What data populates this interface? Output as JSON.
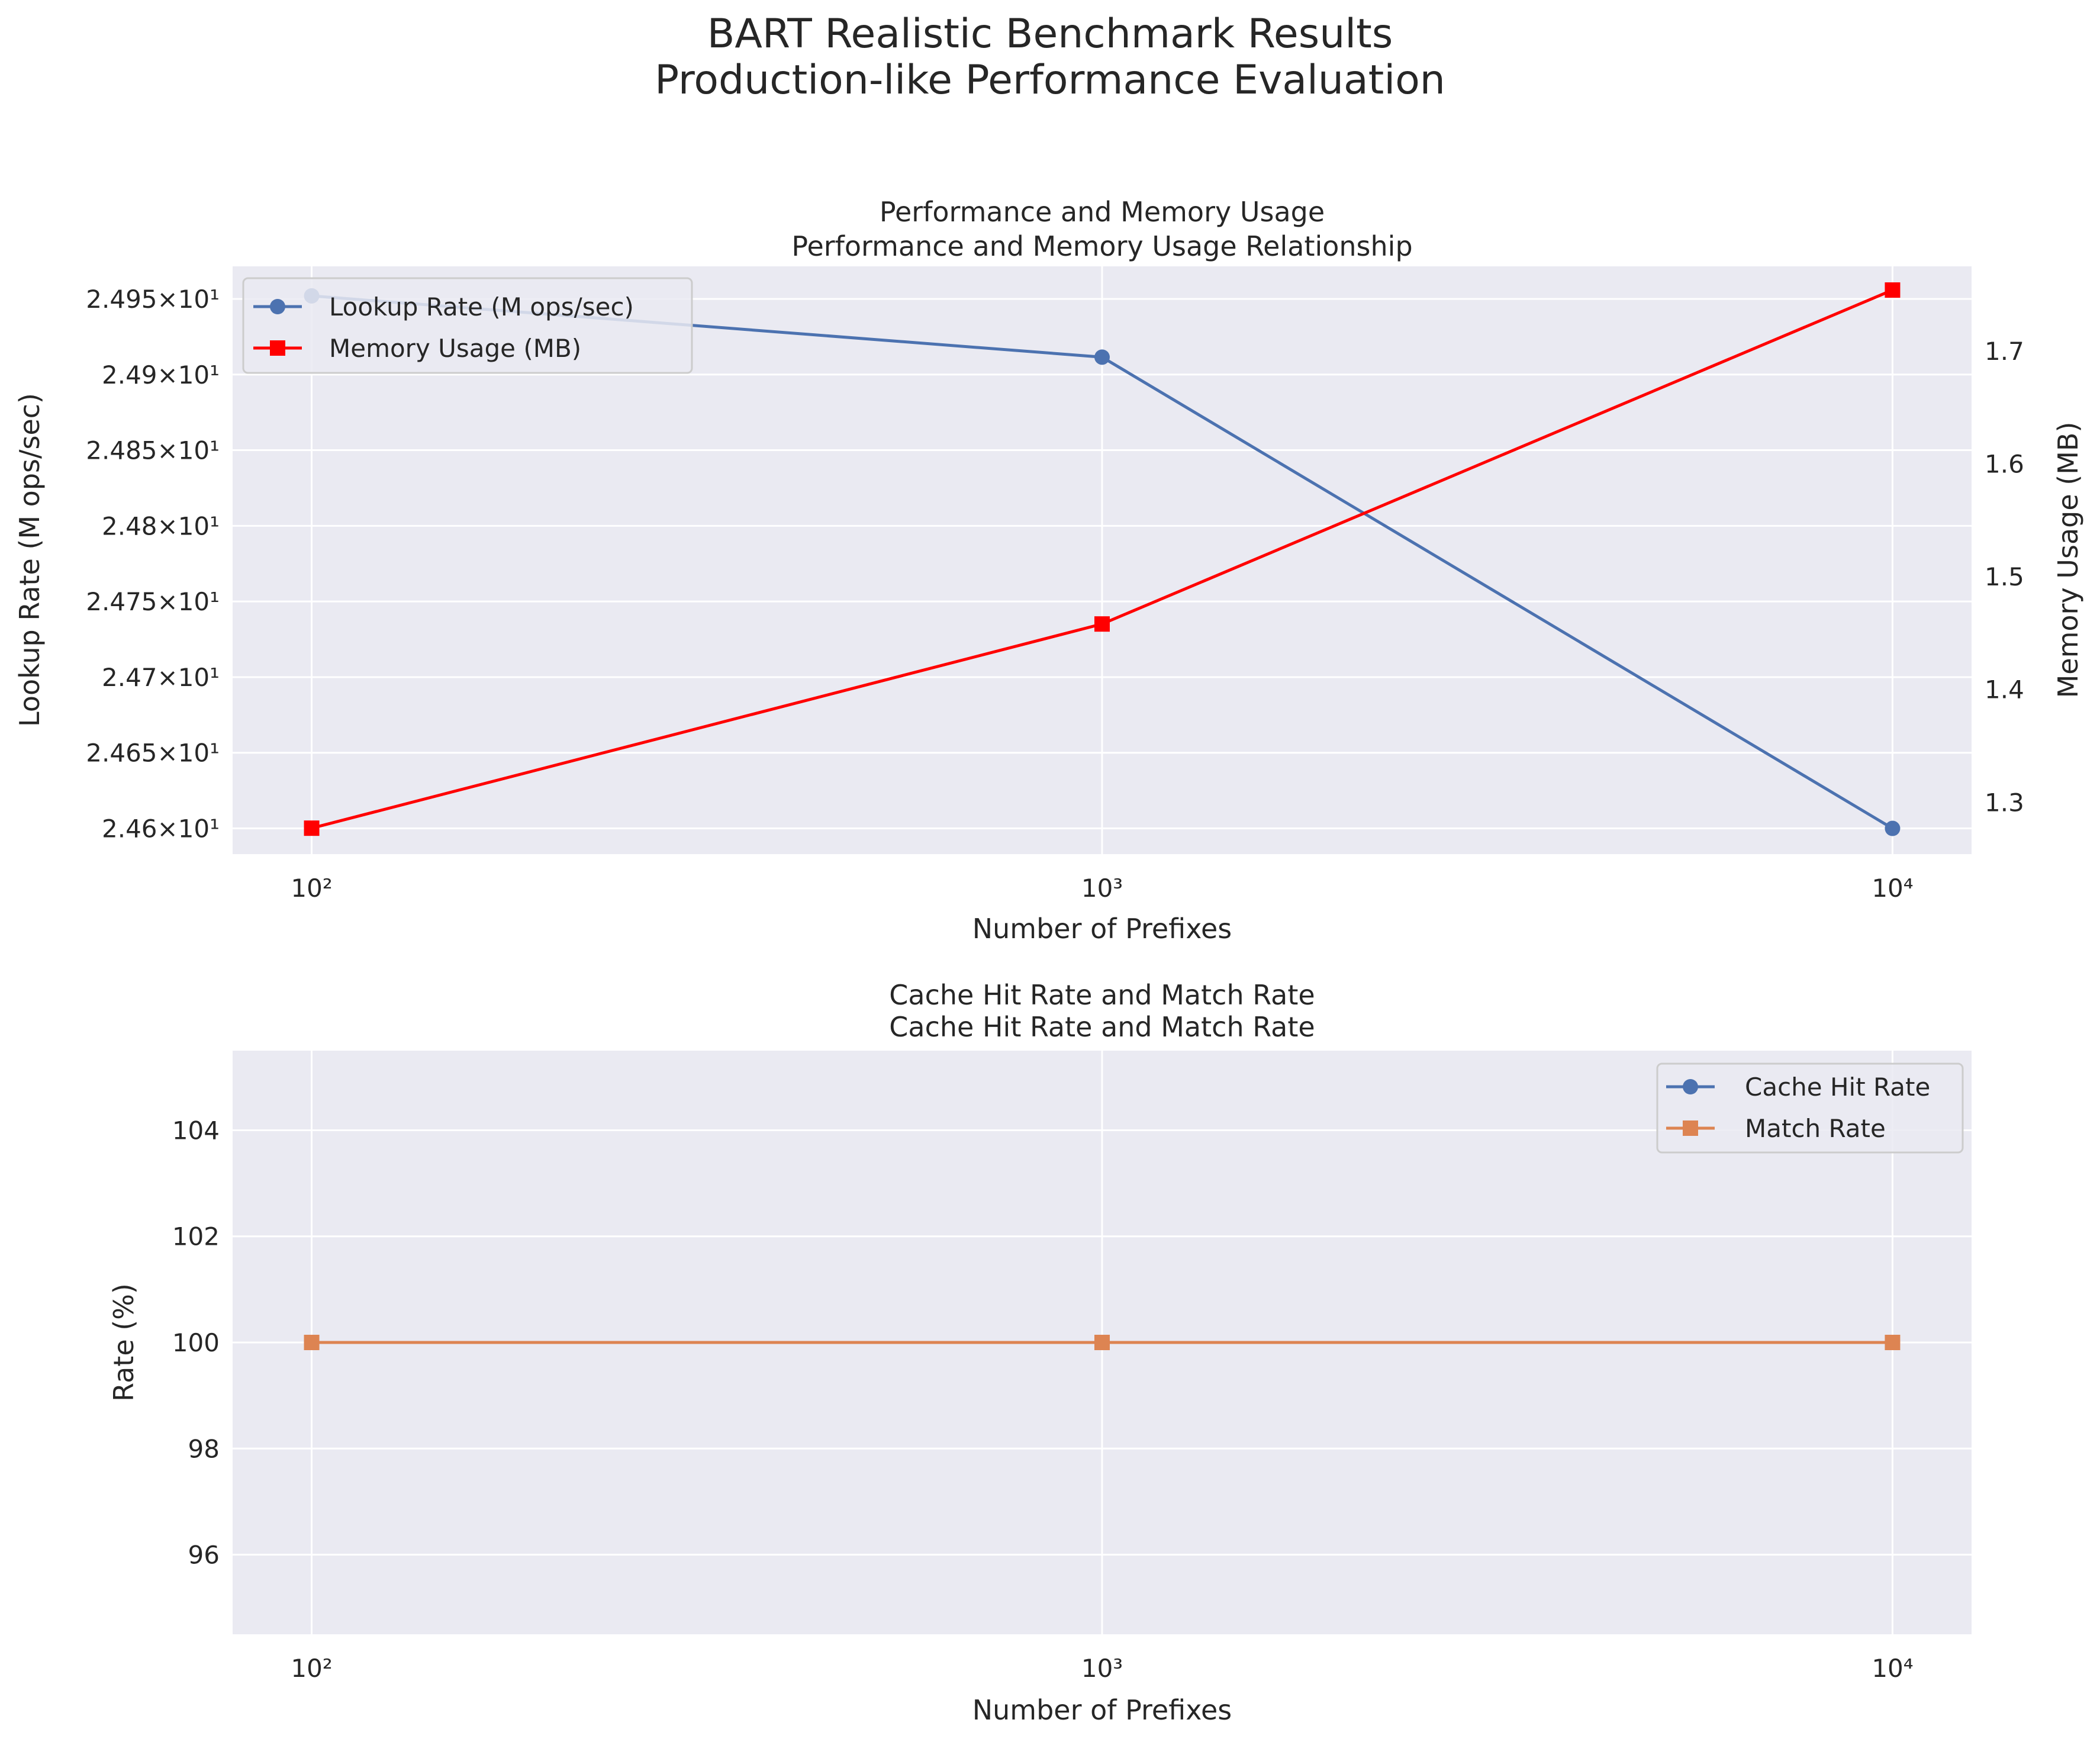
{
  "suptitle": [
    "BART Realistic Benchmark Results",
    "Production-like Performance Evaluation"
  ],
  "colors": {
    "panel_bg": "#EAEAF2",
    "grid": "#FFFFFF",
    "lookup": "#4C72B0",
    "memory": "#FF0000",
    "cache": "#4C72B0",
    "match": "#DD8452"
  },
  "chart_data": [
    {
      "type": "line",
      "title": [
        "Performance and Memory Usage",
        "Performance and Memory Usage Relationship"
      ],
      "xlabel": "Number of Prefixes",
      "ylabel": "Lookup Rate (M ops/sec)",
      "y2label": "Memory Usage (MB)",
      "xscale": "log",
      "x": [
        100,
        1000,
        10000
      ],
      "xticks": [
        {
          "value": 100,
          "label": "10²"
        },
        {
          "value": 1000,
          "label": "10³"
        },
        {
          "value": 10000,
          "label": "10⁴"
        }
      ],
      "ylim": [
        24.583,
        24.9715
      ],
      "yticks": [
        {
          "value": 24.6,
          "label": "2.46×10¹"
        },
        {
          "value": 24.65,
          "label": "2.465×10¹"
        },
        {
          "value": 24.7,
          "label": "2.47×10¹"
        },
        {
          "value": 24.75,
          "label": "2.475×10¹"
        },
        {
          "value": 24.8,
          "label": "2.48×10¹"
        },
        {
          "value": 24.85,
          "label": "2.485×10¹"
        },
        {
          "value": 24.9,
          "label": "2.49×10¹"
        },
        {
          "value": 24.95,
          "label": "2.495×10¹"
        }
      ],
      "y2lim": [
        1.254,
        1.775
      ],
      "y2ticks": [
        {
          "value": 1.3,
          "label": "1.3"
        },
        {
          "value": 1.4,
          "label": "1.4"
        },
        {
          "value": 1.5,
          "label": "1.5"
        },
        {
          "value": 1.6,
          "label": "1.6"
        },
        {
          "value": 1.7,
          "label": "1.7"
        }
      ],
      "series": [
        {
          "name": "Lookup Rate (M ops/sec)",
          "axis": "left",
          "marker": "circle",
          "color": "#4C72B0",
          "values": [
            24.952,
            24.9115,
            24.6
          ]
        },
        {
          "name": "Memory Usage (MB)",
          "axis": "right",
          "marker": "square",
          "color": "#FF0000",
          "values": [
            1.277,
            1.458,
            1.754
          ]
        }
      ],
      "grid": true,
      "legend": "upper-left"
    },
    {
      "type": "line",
      "title": [
        "Cache Hit Rate and Match Rate",
        "Cache Hit Rate and Match Rate"
      ],
      "xlabel": "Number of Prefixes",
      "ylabel": "Rate (%)",
      "xscale": "log",
      "x": [
        100,
        1000,
        10000
      ],
      "xticks": [
        {
          "value": 100,
          "label": "10²"
        },
        {
          "value": 1000,
          "label": "10³"
        },
        {
          "value": 10000,
          "label": "10⁴"
        }
      ],
      "ylim": [
        94.5,
        105.5
      ],
      "yticks": [
        {
          "value": 96,
          "label": "96"
        },
        {
          "value": 98,
          "label": "98"
        },
        {
          "value": 100,
          "label": "100"
        },
        {
          "value": 102,
          "label": "102"
        },
        {
          "value": 104,
          "label": "104"
        }
      ],
      "series": [
        {
          "name": "Cache Hit Rate",
          "marker": "circle",
          "color": "#4C72B0",
          "values": [
            100,
            100,
            100
          ]
        },
        {
          "name": "Match Rate",
          "marker": "square",
          "color": "#DD8452",
          "values": [
            100,
            100,
            100
          ]
        }
      ],
      "grid": true,
      "legend": "upper-right"
    }
  ]
}
